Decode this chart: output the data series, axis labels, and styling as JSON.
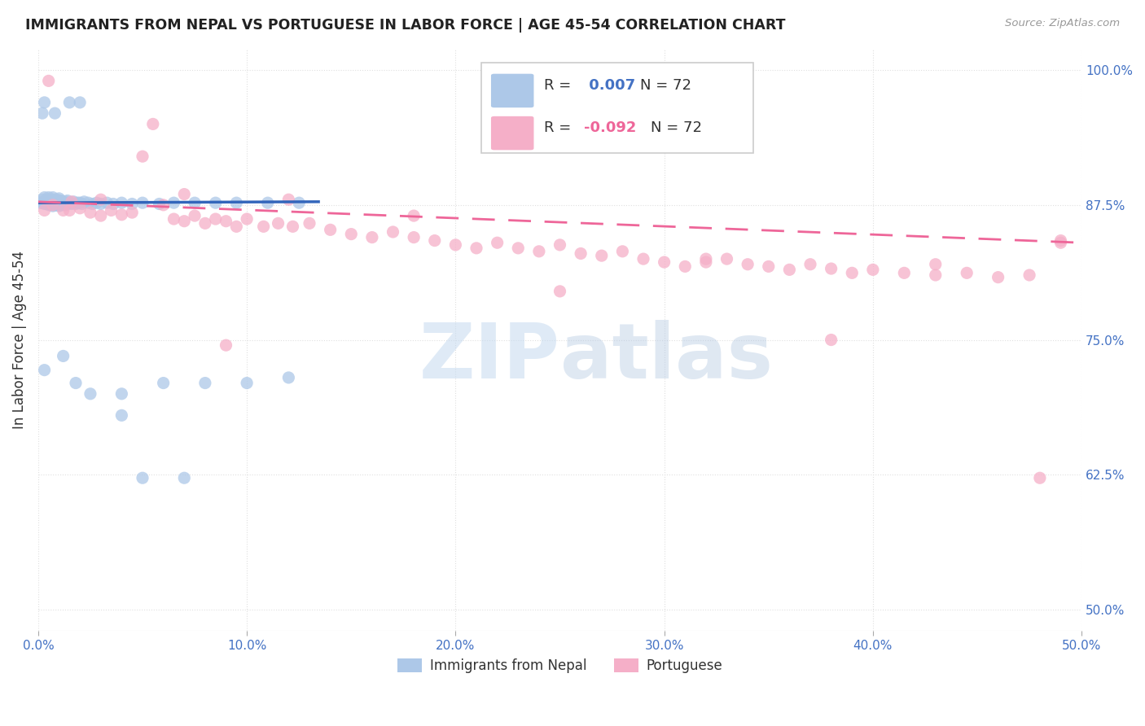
{
  "title": "IMMIGRANTS FROM NEPAL VS PORTUGUESE IN LABOR FORCE | AGE 45-54 CORRELATION CHART",
  "source": "Source: ZipAtlas.com",
  "ylabel": "In Labor Force | Age 45-54",
  "ytick_labels": [
    "50.0%",
    "62.5%",
    "75.0%",
    "87.5%",
    "100.0%"
  ],
  "ytick_values": [
    0.5,
    0.625,
    0.75,
    0.875,
    1.0
  ],
  "xtick_labels": [
    "0.0%",
    "10.0%",
    "20.0%",
    "30.0%",
    "40.0%",
    "50.0%"
  ],
  "xtick_values": [
    0.0,
    0.1,
    0.2,
    0.3,
    0.4,
    0.5
  ],
  "xlim": [
    0.0,
    0.5
  ],
  "ylim": [
    0.48,
    1.02
  ],
  "legend_r_nepal": " 0.007",
  "legend_r_portuguese": "-0.092",
  "legend_n": "72",
  "nepal_color": "#adc8e8",
  "portuguese_color": "#f5afc8",
  "nepal_line_color": "#3366bb",
  "portuguese_line_color": "#ee6699",
  "background_color": "#ffffff",
  "grid_color": "#e0e0e0",
  "title_color": "#222222",
  "axis_label_color": "#4472c4",
  "watermark_zip": "ZIP",
  "watermark_atlas": "atlas",
  "nepal_x": [
    0.001,
    0.002,
    0.002,
    0.003,
    0.003,
    0.003,
    0.004,
    0.004,
    0.004,
    0.005,
    0.005,
    0.005,
    0.005,
    0.006,
    0.006,
    0.006,
    0.007,
    0.007,
    0.007,
    0.007,
    0.008,
    0.008,
    0.008,
    0.009,
    0.009,
    0.009,
    0.01,
    0.01,
    0.01,
    0.01,
    0.011,
    0.011,
    0.011,
    0.012,
    0.012,
    0.013,
    0.013,
    0.014,
    0.014,
    0.015,
    0.016,
    0.017,
    0.018,
    0.019,
    0.02,
    0.021,
    0.022,
    0.024,
    0.026,
    0.028,
    0.03,
    0.033,
    0.036,
    0.04,
    0.045,
    0.05,
    0.058,
    0.065,
    0.075,
    0.085,
    0.095,
    0.11,
    0.125,
    0.003,
    0.012,
    0.018,
    0.025,
    0.04,
    0.06,
    0.08,
    0.1,
    0.12
  ],
  "nepal_y": [
    0.877,
    0.877,
    0.88,
    0.876,
    0.878,
    0.882,
    0.876,
    0.878,
    0.88,
    0.875,
    0.877,
    0.879,
    0.882,
    0.875,
    0.878,
    0.88,
    0.874,
    0.876,
    0.879,
    0.882,
    0.875,
    0.877,
    0.88,
    0.875,
    0.878,
    0.88,
    0.874,
    0.876,
    0.878,
    0.881,
    0.875,
    0.877,
    0.879,
    0.876,
    0.878,
    0.875,
    0.878,
    0.876,
    0.879,
    0.877,
    0.876,
    0.878,
    0.876,
    0.877,
    0.877,
    0.876,
    0.878,
    0.877,
    0.876,
    0.877,
    0.876,
    0.877,
    0.876,
    0.877,
    0.876,
    0.877,
    0.876,
    0.877,
    0.877,
    0.877,
    0.877,
    0.877,
    0.877,
    0.722,
    0.735,
    0.71,
    0.7,
    0.7,
    0.71,
    0.71,
    0.71,
    0.715
  ],
  "nepal_outliers_x": [
    0.003,
    0.05,
    0.07,
    0.002,
    0.04,
    0.008,
    0.015,
    0.02
  ],
  "nepal_outliers_y": [
    0.97,
    0.622,
    0.622,
    0.96,
    0.68,
    0.96,
    0.97,
    0.97
  ],
  "portuguese_x": [
    0.003,
    0.007,
    0.012,
    0.016,
    0.02,
    0.025,
    0.03,
    0.035,
    0.04,
    0.045,
    0.05,
    0.055,
    0.06,
    0.065,
    0.07,
    0.075,
    0.08,
    0.085,
    0.09,
    0.095,
    0.1,
    0.108,
    0.115,
    0.122,
    0.13,
    0.14,
    0.15,
    0.16,
    0.17,
    0.18,
    0.19,
    0.2,
    0.21,
    0.22,
    0.23,
    0.24,
    0.25,
    0.26,
    0.27,
    0.28,
    0.29,
    0.3,
    0.31,
    0.32,
    0.33,
    0.34,
    0.35,
    0.36,
    0.37,
    0.38,
    0.39,
    0.4,
    0.415,
    0.43,
    0.445,
    0.46,
    0.475,
    0.49,
    0.005,
    0.03,
    0.07,
    0.12,
    0.18,
    0.25,
    0.32,
    0.38,
    0.43,
    0.49,
    0.015,
    0.09,
    0.48
  ],
  "portuguese_y": [
    0.87,
    0.875,
    0.87,
    0.878,
    0.872,
    0.868,
    0.865,
    0.87,
    0.866,
    0.868,
    0.92,
    0.95,
    0.875,
    0.862,
    0.86,
    0.865,
    0.858,
    0.862,
    0.86,
    0.855,
    0.862,
    0.855,
    0.858,
    0.855,
    0.858,
    0.852,
    0.848,
    0.845,
    0.85,
    0.845,
    0.842,
    0.838,
    0.835,
    0.84,
    0.835,
    0.832,
    0.838,
    0.83,
    0.828,
    0.832,
    0.825,
    0.822,
    0.818,
    0.822,
    0.825,
    0.82,
    0.818,
    0.815,
    0.82,
    0.816,
    0.812,
    0.815,
    0.812,
    0.81,
    0.812,
    0.808,
    0.81,
    0.842,
    0.99,
    0.88,
    0.885,
    0.88,
    0.865,
    0.795,
    0.825,
    0.75,
    0.82,
    0.84,
    0.87,
    0.745,
    0.622
  ],
  "nepal_line_x": [
    0.0,
    0.135
  ],
  "nepal_line_y": [
    0.877,
    0.878
  ],
  "port_line_x": [
    0.0,
    0.5
  ],
  "port_line_y": [
    0.878,
    0.84
  ]
}
